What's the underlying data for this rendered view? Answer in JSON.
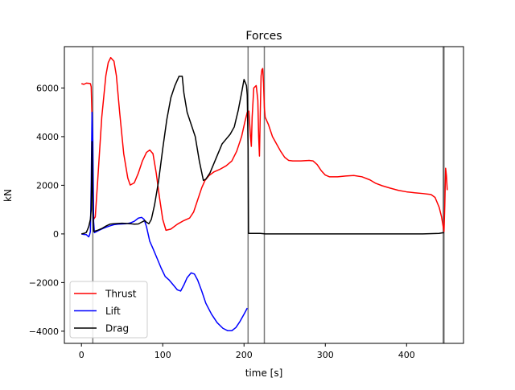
{
  "chart_data": {
    "type": "line",
    "title": "Forces",
    "xlabel": "time [s]",
    "ylabel": "kN",
    "xlim": [
      -21,
      470
    ],
    "ylim": [
      -4500,
      7700
    ],
    "x_ticks": [
      0,
      100,
      200,
      300,
      400
    ],
    "y_ticks": [
      -4000,
      -2000,
      0,
      2000,
      4000,
      6000
    ],
    "grid": false,
    "legend_position": "lower left",
    "vertical_markers": [
      14,
      205,
      225,
      445,
      446
    ],
    "series": [
      {
        "name": "Thrust",
        "color": "#ff0000",
        "points": [
          [
            0,
            6180
          ],
          [
            3,
            6150
          ],
          [
            6,
            6200
          ],
          [
            9,
            6190
          ],
          [
            11,
            6180
          ],
          [
            12,
            6050
          ],
          [
            13,
            4800
          ],
          [
            14,
            2500
          ],
          [
            15,
            600
          ],
          [
            17,
            700
          ],
          [
            20,
            2200
          ],
          [
            25,
            4800
          ],
          [
            30,
            6500
          ],
          [
            33,
            7050
          ],
          [
            36,
            7250
          ],
          [
            40,
            7100
          ],
          [
            43,
            6500
          ],
          [
            47,
            5000
          ],
          [
            52,
            3300
          ],
          [
            57,
            2300
          ],
          [
            60,
            2010
          ],
          [
            65,
            2100
          ],
          [
            70,
            2500
          ],
          [
            75,
            3000
          ],
          [
            80,
            3350
          ],
          [
            84,
            3450
          ],
          [
            88,
            3300
          ],
          [
            92,
            2500
          ],
          [
            96,
            1500
          ],
          [
            100,
            600
          ],
          [
            104,
            150
          ],
          [
            110,
            200
          ],
          [
            118,
            400
          ],
          [
            126,
            550
          ],
          [
            133,
            650
          ],
          [
            138,
            900
          ],
          [
            143,
            1400
          ],
          [
            148,
            1900
          ],
          [
            152,
            2200
          ],
          [
            157,
            2400
          ],
          [
            163,
            2550
          ],
          [
            170,
            2650
          ],
          [
            178,
            2800
          ],
          [
            185,
            3000
          ],
          [
            191,
            3400
          ],
          [
            197,
            4000
          ],
          [
            201,
            4600
          ],
          [
            204,
            5000
          ],
          [
            206,
            5050
          ],
          [
            208,
            4000
          ],
          [
            209,
            3600
          ],
          [
            210,
            4800
          ],
          [
            212,
            6000
          ],
          [
            215,
            6100
          ],
          [
            217,
            5500
          ],
          [
            218,
            4000
          ],
          [
            219,
            3200
          ],
          [
            220,
            5000
          ],
          [
            221,
            6500
          ],
          [
            222,
            6750
          ],
          [
            223,
            6800
          ],
          [
            224,
            6200
          ],
          [
            225,
            5200
          ],
          [
            226,
            4800
          ],
          [
            230,
            4500
          ],
          [
            235,
            4000
          ],
          [
            240,
            3700
          ],
          [
            245,
            3400
          ],
          [
            250,
            3150
          ],
          [
            255,
            3020
          ],
          [
            260,
            3000
          ],
          [
            270,
            3000
          ],
          [
            280,
            3020
          ],
          [
            285,
            3000
          ],
          [
            290,
            2850
          ],
          [
            295,
            2600
          ],
          [
            300,
            2420
          ],
          [
            305,
            2350
          ],
          [
            315,
            2350
          ],
          [
            325,
            2380
          ],
          [
            335,
            2400
          ],
          [
            345,
            2350
          ],
          [
            355,
            2220
          ],
          [
            362,
            2080
          ],
          [
            370,
            1980
          ],
          [
            380,
            1880
          ],
          [
            390,
            1790
          ],
          [
            400,
            1730
          ],
          [
            410,
            1690
          ],
          [
            420,
            1660
          ],
          [
            430,
            1620
          ],
          [
            435,
            1500
          ],
          [
            440,
            1100
          ],
          [
            443,
            700
          ],
          [
            445,
            300
          ],
          [
            446,
            100
          ],
          [
            447,
            1200
          ],
          [
            448,
            2700
          ],
          [
            449,
            2400
          ],
          [
            450,
            1800
          ]
        ]
      },
      {
        "name": "Lift",
        "color": "#0000ff",
        "points": [
          [
            0,
            0
          ],
          [
            3,
            -20
          ],
          [
            6,
            -30
          ],
          [
            9,
            -120
          ],
          [
            10,
            -40
          ],
          [
            11,
            100
          ],
          [
            12,
            2000
          ],
          [
            13,
            5000
          ],
          [
            14,
            3800
          ],
          [
            15,
            500
          ],
          [
            16,
            50
          ],
          [
            20,
            120
          ],
          [
            25,
            200
          ],
          [
            30,
            270
          ],
          [
            35,
            330
          ],
          [
            40,
            380
          ],
          [
            45,
            400
          ],
          [
            50,
            410
          ],
          [
            55,
            420
          ],
          [
            60,
            450
          ],
          [
            65,
            520
          ],
          [
            70,
            650
          ],
          [
            74,
            680
          ],
          [
            77,
            600
          ],
          [
            80,
            300
          ],
          [
            84,
            -300
          ],
          [
            88,
            -600
          ],
          [
            93,
            -1000
          ],
          [
            98,
            -1400
          ],
          [
            103,
            -1750
          ],
          [
            108,
            -1900
          ],
          [
            113,
            -2100
          ],
          [
            118,
            -2300
          ],
          [
            122,
            -2350
          ],
          [
            126,
            -2100
          ],
          [
            130,
            -1800
          ],
          [
            135,
            -1600
          ],
          [
            139,
            -1650
          ],
          [
            143,
            -1900
          ],
          [
            148,
            -2350
          ],
          [
            153,
            -2850
          ],
          [
            160,
            -3300
          ],
          [
            167,
            -3650
          ],
          [
            174,
            -3880
          ],
          [
            180,
            -3980
          ],
          [
            185,
            -3980
          ],
          [
            190,
            -3850
          ],
          [
            195,
            -3600
          ],
          [
            200,
            -3300
          ],
          [
            204,
            -3050
          ]
        ]
      },
      {
        "name": "Drag",
        "color": "#000000",
        "points": [
          [
            0,
            0
          ],
          [
            3,
            20
          ],
          [
            6,
            60
          ],
          [
            9,
            300
          ],
          [
            11,
            600
          ],
          [
            12,
            1000
          ],
          [
            13,
            3800
          ],
          [
            14,
            1000
          ],
          [
            15,
            100
          ],
          [
            20,
            150
          ],
          [
            25,
            220
          ],
          [
            30,
            320
          ],
          [
            35,
            400
          ],
          [
            40,
            420
          ],
          [
            45,
            430
          ],
          [
            50,
            440
          ],
          [
            55,
            430
          ],
          [
            60,
            420
          ],
          [
            65,
            400
          ],
          [
            70,
            410
          ],
          [
            75,
            500
          ],
          [
            78,
            550
          ],
          [
            80,
            480
          ],
          [
            83,
            420
          ],
          [
            86,
            600
          ],
          [
            90,
            1200
          ],
          [
            95,
            2200
          ],
          [
            100,
            3500
          ],
          [
            105,
            4700
          ],
          [
            110,
            5600
          ],
          [
            115,
            6100
          ],
          [
            120,
            6480
          ],
          [
            124,
            6480
          ],
          [
            126,
            5800
          ],
          [
            130,
            5000
          ],
          [
            135,
            4500
          ],
          [
            140,
            4000
          ],
          [
            145,
            3000
          ],
          [
            150,
            2200
          ],
          [
            153,
            2250
          ],
          [
            158,
            2500
          ],
          [
            163,
            2900
          ],
          [
            168,
            3300
          ],
          [
            173,
            3700
          ],
          [
            178,
            3900
          ],
          [
            183,
            4100
          ],
          [
            188,
            4400
          ],
          [
            193,
            5100
          ],
          [
            197,
            5800
          ],
          [
            200,
            6350
          ],
          [
            203,
            6100
          ],
          [
            204,
            5700
          ],
          [
            205,
            3500
          ],
          [
            205.5,
            20
          ],
          [
            210,
            20
          ],
          [
            220,
            20
          ],
          [
            224,
            10
          ],
          [
            226,
            0
          ],
          [
            240,
            0
          ],
          [
            280,
            0
          ],
          [
            330,
            0
          ],
          [
            380,
            0
          ],
          [
            420,
            0
          ],
          [
            440,
            20
          ],
          [
            445,
            50
          ],
          [
            446,
            40
          ]
        ]
      }
    ]
  }
}
